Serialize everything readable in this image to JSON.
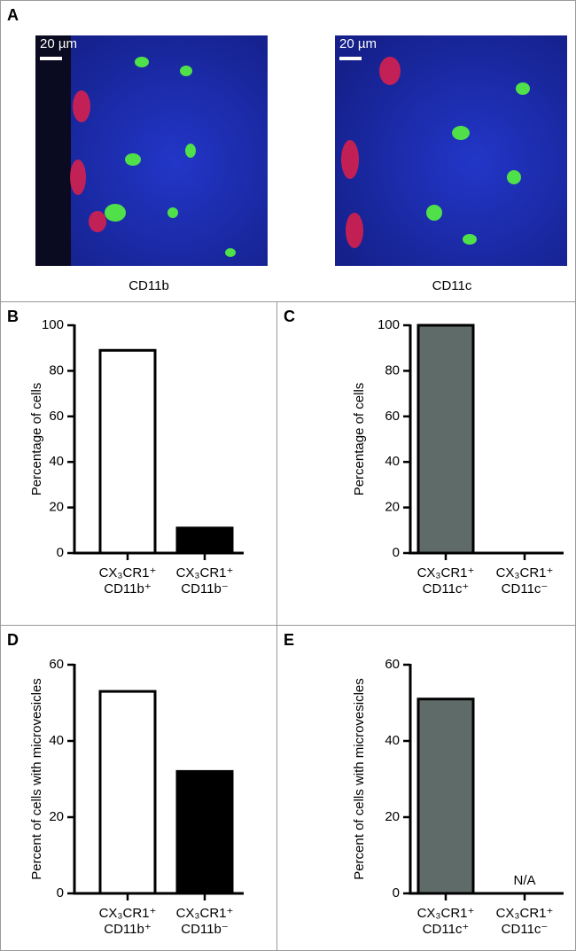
{
  "panel_a": {
    "label": "A",
    "images": [
      {
        "scale_bar": "20 µm",
        "caption": "CD11b"
      },
      {
        "scale_bar": "20 µm",
        "caption": "CD11c"
      }
    ]
  },
  "chart_data": [
    {
      "type": "bar",
      "panel": "B",
      "y_label": "Percentage of cells",
      "categories": [
        "CX₃CR1⁺\nCD11b⁺",
        "CX₃CR1⁺\nCD11b⁻"
      ],
      "values": [
        89,
        11
      ],
      "colors": [
        "#ffffff",
        "#000000"
      ],
      "ylim": [
        0,
        100
      ],
      "yticks": [
        0,
        20,
        40,
        60,
        80,
        100
      ]
    },
    {
      "type": "bar",
      "panel": "C",
      "y_label": "Percentage of cells",
      "categories": [
        "CX₃CR1⁺\nCD11c⁺",
        "CX₃CR1⁺\nCD11c⁻"
      ],
      "values": [
        100,
        0
      ],
      "colors": [
        "#5f6b69",
        "#5f6b69"
      ],
      "ylim": [
        0,
        100
      ],
      "yticks": [
        0,
        20,
        40,
        60,
        80,
        100
      ]
    },
    {
      "type": "bar",
      "panel": "D",
      "y_label": "Percent of cells with microvesicles",
      "categories": [
        "CX₃CR1⁺\nCD11b⁺",
        "CX₃CR1⁺\nCD11b⁻"
      ],
      "values": [
        53,
        32
      ],
      "colors": [
        "#ffffff",
        "#000000"
      ],
      "ylim": [
        0,
        60
      ],
      "yticks": [
        0,
        20,
        40,
        60
      ]
    },
    {
      "type": "bar",
      "panel": "E",
      "y_label": "Percent of cells with microvesicles",
      "categories": [
        "CX₃CR1⁺\nCD11c⁺",
        "CX₃CR1⁺\nCD11c⁻"
      ],
      "values": [
        51,
        null
      ],
      "value_labels": [
        null,
        "N/A"
      ],
      "colors": [
        "#5f6b69",
        "#5f6b69"
      ],
      "ylim": [
        0,
        60
      ],
      "yticks": [
        0,
        20,
        40,
        60
      ]
    }
  ]
}
